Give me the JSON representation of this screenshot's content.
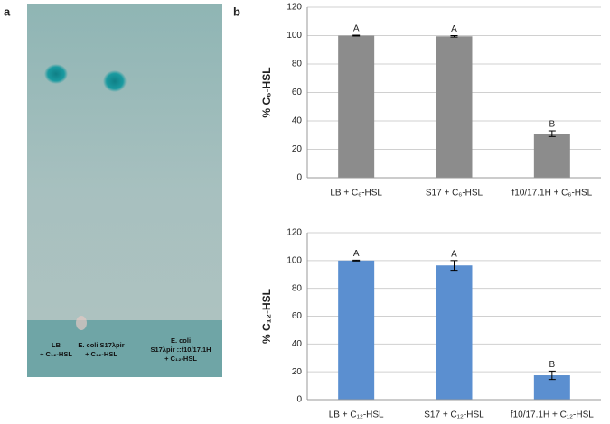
{
  "panels": {
    "a": "a",
    "b": "b"
  },
  "photo": {
    "lanes": [
      [
        "LB",
        "+ C₁₂-HSL"
      ],
      [
        "E. coli S17λpir",
        "+ C₁₂-HSL"
      ],
      [
        "E. coli",
        "S17λpir ::f10/17.1H",
        "+ C₁₂-HSL"
      ]
    ]
  },
  "chart_data": [
    {
      "type": "bar",
      "y_label": "% C₆-HSL",
      "categories": [
        "LB + C₆-HSL",
        "S17 + C₆-HSL",
        "f10/17.1H + C₆-HSL"
      ],
      "values": [
        100,
        99.5,
        31
      ],
      "errors": [
        0.3,
        0.5,
        2
      ],
      "annotations": [
        "A",
        "A",
        "B"
      ],
      "color": "#8c8c8c",
      "ylim": [
        0,
        120
      ],
      "yticks": [
        0,
        20,
        40,
        60,
        80,
        100,
        120
      ],
      "grid": true
    },
    {
      "type": "bar",
      "y_label": "% C₁₂-HSL",
      "categories": [
        "LB + C₁₂-HSL",
        "S17 + C₁₂-HSL",
        "f10/17.1H + C₁₂-HSL"
      ],
      "values": [
        100,
        96.5,
        17.5
      ],
      "errors": [
        0.3,
        3.5,
        3
      ],
      "annotations": [
        "A",
        "A",
        "B"
      ],
      "color": "#5b8fd0",
      "ylim": [
        0,
        120
      ],
      "yticks": [
        0,
        20,
        40,
        60,
        80,
        100,
        120
      ],
      "grid": true
    }
  ]
}
